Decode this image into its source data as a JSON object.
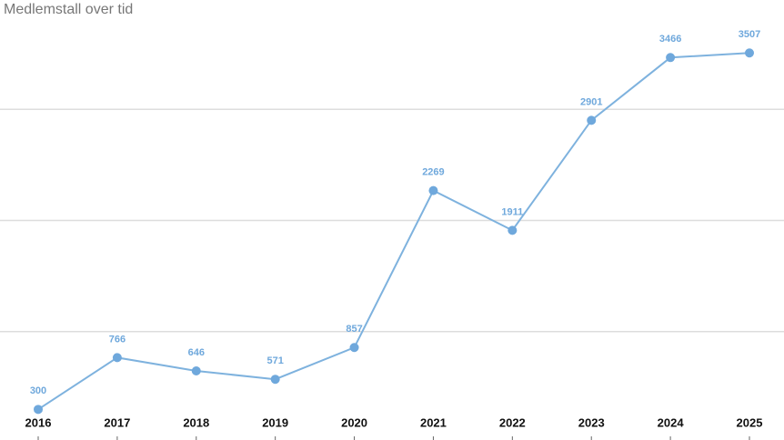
{
  "chart_data": {
    "type": "line",
    "title": "Medlemstall over tid",
    "categories": [
      "2016",
      "2017",
      "2018",
      "2019",
      "2020",
      "2021",
      "2022",
      "2023",
      "2024",
      "2025"
    ],
    "values": [
      300,
      766,
      646,
      571,
      857,
      2269,
      1911,
      2901,
      3466,
      3507
    ],
    "color": "#7eb2de",
    "marker_color": "#6fa8dc",
    "ylim": [
      0,
      4000
    ],
    "yticks": [
      1000,
      2000,
      3000
    ],
    "grid": true
  }
}
